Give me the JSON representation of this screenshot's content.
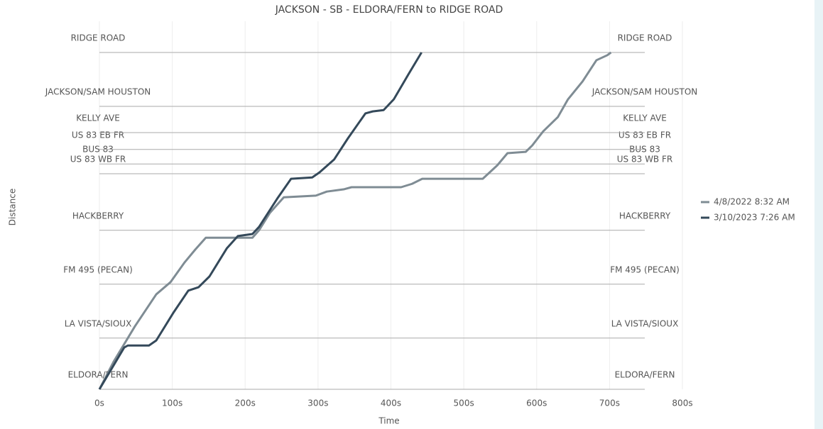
{
  "chart_data": {
    "type": "line",
    "title": "JACKSON - SB - ELDORA/FERN to RIDGE ROAD",
    "xlabel": "Time",
    "ylabel": "Distance",
    "xlim": [
      0,
      800
    ],
    "xticks": [
      {
        "value": 0,
        "label": "0s"
      },
      {
        "value": 100,
        "label": "100s"
      },
      {
        "value": 200,
        "label": "200s"
      },
      {
        "value": 300,
        "label": "300s"
      },
      {
        "value": 400,
        "label": "400s"
      },
      {
        "value": 500,
        "label": "500s"
      },
      {
        "value": 600,
        "label": "600s"
      },
      {
        "value": 700,
        "label": "700s"
      },
      {
        "value": 800,
        "label": "800s"
      }
    ],
    "ylim": [
      0,
      100
    ],
    "yticks": [
      {
        "value": 0,
        "label": "ELDORA/FERN"
      },
      {
        "value": 15.2,
        "label": "LA VISTA/SIOUX"
      },
      {
        "value": 31.2,
        "label": "FM 495 (PECAN)"
      },
      {
        "value": 47.2,
        "label": "HACKBERRY"
      },
      {
        "value": 64,
        "label": "US 83 WB FR"
      },
      {
        "value": 66.9,
        "label": "BUS 83"
      },
      {
        "value": 71.2,
        "label": "US 83 EB FR"
      },
      {
        "value": 76.2,
        "label": "KELLY AVE"
      },
      {
        "value": 84,
        "label": "JACKSON/SAM HOUSTON"
      },
      {
        "value": 100,
        "label": "RIDGE ROAD"
      }
    ],
    "legend": "right",
    "series": [
      {
        "name": "4/8/2022 8:32 AM",
        "color": "#7f8c94",
        "x": [
          0,
          19.5,
          48.7,
          78,
          97.5,
          117,
          131.6,
          146,
          210,
          219,
          234,
          253,
          297,
          312,
          336,
          346,
          414,
          429,
          443,
          526,
          546,
          560,
          585,
          594,
          609,
          629,
          643,
          663,
          682,
          697,
          702
        ],
        "values": [
          0,
          8.2,
          18.7,
          28.2,
          31.8,
          37.7,
          41.5,
          45,
          45,
          47.2,
          52.4,
          57,
          57.5,
          58.7,
          59.4,
          60,
          60,
          61,
          62.5,
          62.5,
          66.5,
          70.1,
          70.5,
          72.4,
          76.6,
          80.8,
          86.1,
          91.4,
          97.7,
          99.2,
          100
        ]
      },
      {
        "name": "3/10/2023 7:26 AM",
        "color": "#34495a",
        "x": [
          0,
          34,
          39,
          68,
          78,
          102,
          122,
          136,
          151,
          175,
          190,
          210,
          219,
          244,
          263,
          292,
          302,
          322,
          341,
          365,
          375,
          390,
          404,
          424,
          442
        ],
        "values": [
          0,
          12.4,
          13,
          13,
          14.5,
          22.9,
          29.3,
          30.3,
          33.5,
          41.9,
          45.5,
          46.1,
          48.2,
          56.6,
          62.5,
          62.9,
          64.4,
          68.2,
          74.5,
          81.9,
          82.5,
          82.9,
          86.1,
          93.5,
          100
        ]
      }
    ]
  }
}
